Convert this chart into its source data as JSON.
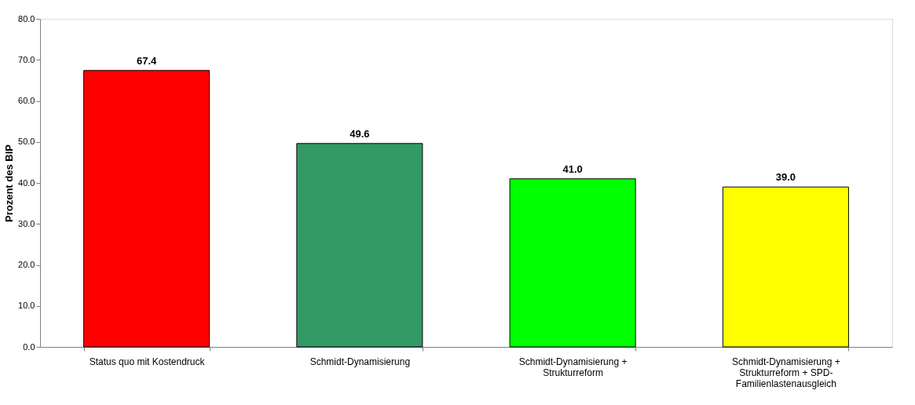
{
  "chart_data": {
    "type": "bar",
    "ylabel": "Prozent des BIP",
    "categories": [
      "Status quo mit Kostendruck",
      "Schmidt-Dynamisierung",
      "Schmidt-Dynamisierung +\nStrukturreform",
      "Schmidt-Dynamisierung +\nStrukturreform + SPD-\nFamilienlastenausgleich"
    ],
    "values": [
      67.4,
      49.6,
      41.0,
      39.0
    ],
    "colors": [
      "#ff0000",
      "#339966",
      "#00ff00",
      "#ffff00"
    ],
    "value_labels": [
      "67.4",
      "49.6",
      "41.0",
      "39.0"
    ],
    "ylim": [
      0,
      80
    ],
    "yticks": [
      {
        "value": 0,
        "label": "0.0"
      },
      {
        "value": 10,
        "label": "10.0"
      },
      {
        "value": 20,
        "label": "20.0"
      },
      {
        "value": 30,
        "label": "30.0"
      },
      {
        "value": 40,
        "label": "40.0"
      },
      {
        "value": 50,
        "label": "50.0"
      },
      {
        "value": 60,
        "label": "60.0"
      },
      {
        "value": 70,
        "label": "70.0"
      },
      {
        "value": 80,
        "label": "80.0"
      }
    ],
    "grid": false
  }
}
